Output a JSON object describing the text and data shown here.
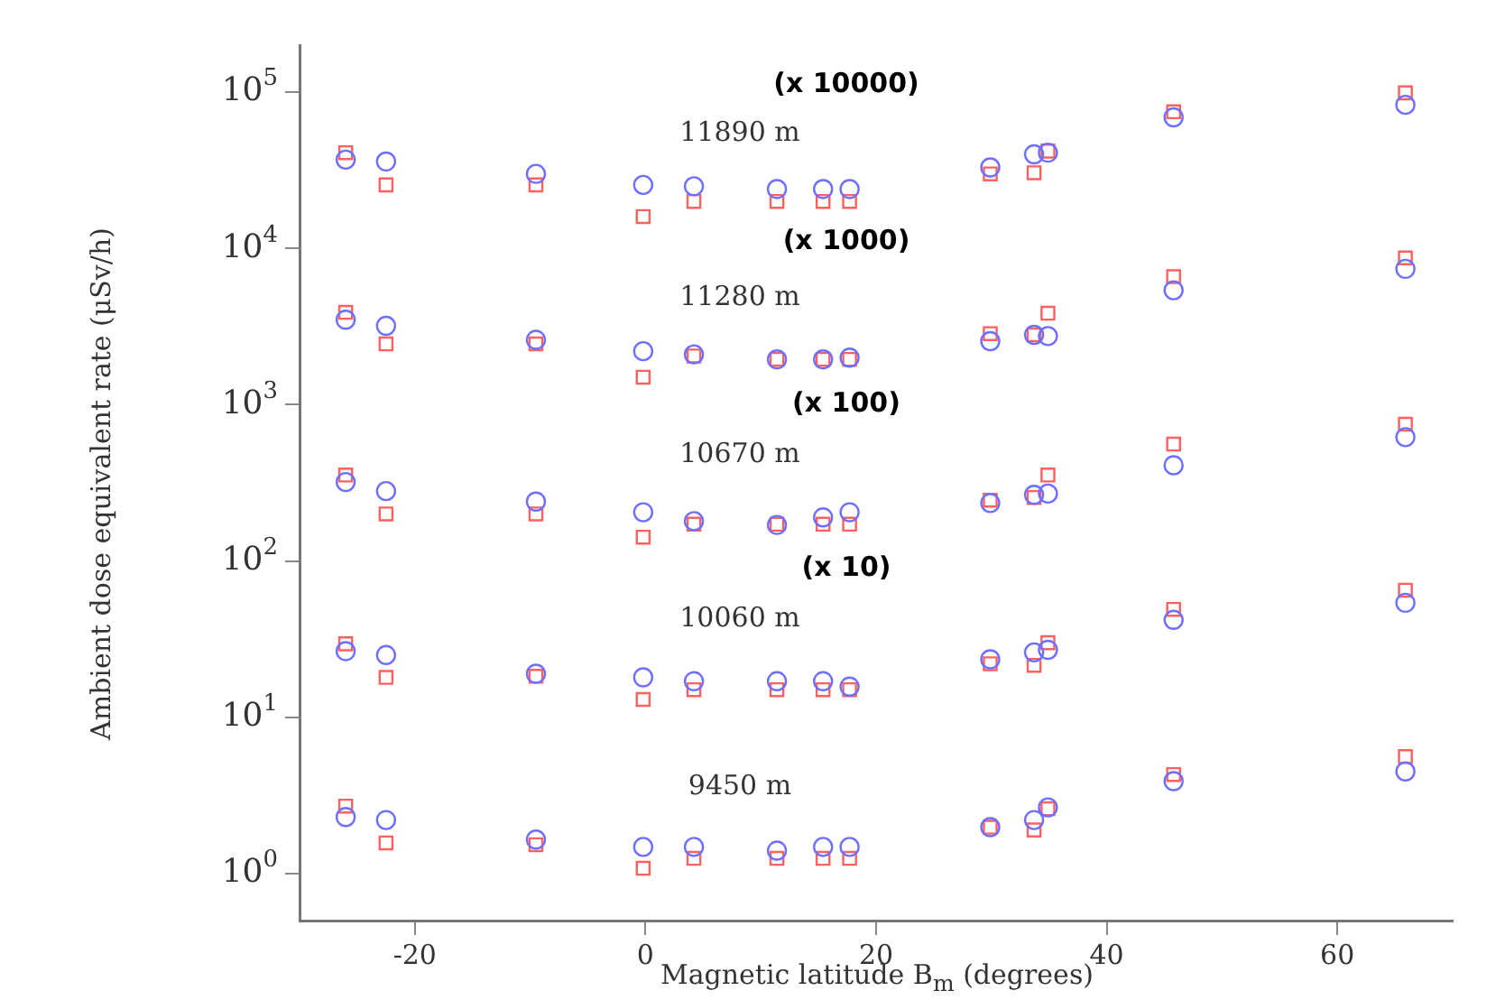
{
  "chart_data": {
    "type": "scatter",
    "xlabel": "Magnetic latitude B$_{m}$ (degrees)",
    "ylabel": "Ambient dose equivalent rate (μSv/h)",
    "log": "y",
    "grid": false,
    "legend": false,
    "xlim": [
      -30,
      70
    ],
    "xticks": [
      -20,
      0,
      20,
      40,
      60
    ],
    "ylim": [
      0.5,
      200000
    ],
    "yticks": [
      {
        "value": 1,
        "label": "10$^{0}$"
      },
      {
        "value": 10,
        "label": "10$^{1}$"
      },
      {
        "value": 100,
        "label": "10$^{2}$"
      },
      {
        "value": 1000,
        "label": "10$^{3}$"
      },
      {
        "value": 10000,
        "label": "10$^{4}$"
      },
      {
        "value": 100000,
        "label": "10$^{5}$"
      }
    ],
    "annotations": [
      "(x 10000)",
      "11890 m",
      "(x 1000)",
      "11280 m",
      "(x 100)",
      "10670 m",
      "(x 10)",
      "10060 m",
      "9450 m"
    ],
    "series": [
      {
        "color": "#6f6fff",
        "marker": "circle",
        "x": [
          -26,
          -22.5,
          -9.5,
          -0.2,
          4.2,
          11.4,
          15.4,
          17.7,
          29.9,
          33.7,
          34.9,
          45.8,
          65.9,
          -26,
          -22.5,
          -9.5,
          -0.2,
          4.2,
          11.4,
          15.4,
          17.7,
          29.9,
          33.7,
          34.9,
          45.8,
          65.9,
          -26,
          -22.5,
          -9.5,
          -0.2,
          4.2,
          11.4,
          15.4,
          17.7,
          29.9,
          33.7,
          34.9,
          45.8,
          65.9,
          -26,
          -22.5,
          -9.5,
          -0.2,
          4.2,
          11.4,
          15.4,
          17.7,
          29.9,
          33.7,
          34.9,
          45.8,
          65.9,
          -26,
          -22.5,
          -9.5,
          -0.2,
          4.2,
          11.4,
          15.4,
          17.7,
          29.9,
          33.7,
          34.9,
          45.8,
          65.9
        ],
        "values": [
          37000,
          36000,
          30000,
          25500,
          25000,
          24000,
          24000,
          24000,
          33000,
          40000,
          41000,
          69000,
          83000,
          3500,
          3200,
          2600,
          2200,
          2100,
          1950,
          1950,
          2000,
          2550,
          2800,
          2750,
          5400,
          7400,
          320,
          280,
          240,
          205,
          180,
          170,
          190,
          205,
          235,
          265,
          270,
          410,
          620,
          26.5,
          25,
          19,
          18,
          17,
          17,
          17,
          15.7,
          23.5,
          26,
          27,
          42,
          54,
          2.3,
          2.2,
          1.65,
          1.48,
          1.48,
          1.4,
          1.48,
          1.48,
          1.98,
          2.2,
          2.65,
          3.9,
          4.5
        ]
      },
      {
        "color": "#ff6060",
        "marker": "square",
        "x": [
          -26,
          -22.5,
          -9.5,
          -0.2,
          4.2,
          11.4,
          15.4,
          17.7,
          29.9,
          33.7,
          34.9,
          45.8,
          65.9,
          -26,
          -22.5,
          -9.5,
          -0.2,
          4.2,
          11.4,
          15.4,
          17.7,
          29.9,
          33.7,
          34.9,
          45.8,
          65.9,
          -26,
          -22.5,
          -9.5,
          -0.2,
          4.2,
          11.4,
          15.4,
          17.7,
          29.9,
          33.7,
          34.9,
          45.8,
          65.9,
          -26,
          -22.5,
          -9.5,
          -0.2,
          4.2,
          11.4,
          15.4,
          17.7,
          29.9,
          33.7,
          34.9,
          45.8,
          65.9,
          -26,
          -22.5,
          -9.5,
          -0.2,
          4.2,
          11.4,
          15.4,
          17.7,
          29.9,
          33.7,
          34.9,
          45.8,
          65.9
        ],
        "values": [
          41000,
          25500,
          25500,
          16000,
          20000,
          20000,
          20000,
          20000,
          30000,
          30500,
          42000,
          75000,
          99000,
          3900,
          2450,
          2450,
          1500,
          2050,
          1950,
          1950,
          1950,
          2850,
          2800,
          3850,
          6600,
          8700,
          355,
          200,
          200,
          142,
          172,
          172,
          172,
          172,
          245,
          255,
          355,
          560,
          750,
          29.5,
          18,
          18.3,
          13,
          15,
          15,
          15,
          15,
          22,
          21.5,
          30,
          49,
          65,
          2.7,
          1.57,
          1.53,
          1.08,
          1.25,
          1.25,
          1.25,
          1.25,
          1.98,
          1.9,
          2.6,
          4.3,
          5.6
        ]
      }
    ]
  }
}
